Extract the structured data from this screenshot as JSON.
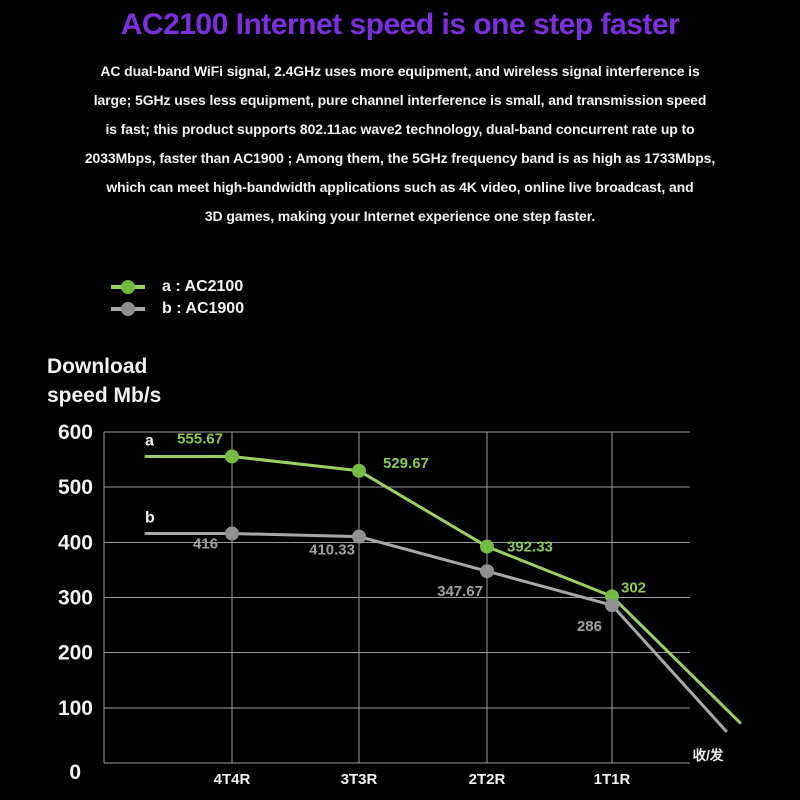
{
  "title": "AC2100 Internet speed is one step faster",
  "colors": {
    "background": "#000000",
    "title": "#7b2fdd",
    "text": "#f2f2f2",
    "grid": "#9a9a9a"
  },
  "description": {
    "lines": [
      "AC dual-band WiFi signal, 2.4GHz uses more equipment, and wireless signal interference is",
      "large; 5GHz uses less equipment, pure channel interference is small, and transmission speed",
      "is fast; this product supports 802.11ac wave2 technology, dual-band concurrent rate up to",
      "2033Mbps, faster than AC1900 ; Among them, the 5GHz frequency band is as high as 1733Mbps,",
      "which can meet high-bandwidth applications such as 4K video, online live broadcast, and",
      "3D games, making your Internet experience one step faster."
    ]
  },
  "y_axis_title_lines": [
    "Download",
    "speed Mb/s"
  ],
  "chart_data": {
    "type": "line",
    "title": "",
    "categories": [
      "4T4R",
      "3T3R",
      "2T2R",
      "1T1R"
    ],
    "xlabel": "收/发",
    "ylabel": "Download speed Mb/s",
    "ylim": [
      0,
      600
    ],
    "yticks": [
      0,
      100,
      200,
      300,
      400,
      500,
      600
    ],
    "grid": true,
    "legend_position": "top-left",
    "series": [
      {
        "name": "a : AC2100",
        "letter": "a",
        "line_color": "#9ccf63",
        "marker_color": "#74bb44",
        "label_color": "#8fc94f",
        "values": [
          555.67,
          529.67,
          392.33,
          302
        ],
        "point_labels": [
          "555.67",
          "529.67",
          "392.33",
          "302"
        ],
        "tail_end_value": 73
      },
      {
        "name": "b : AC1900",
        "letter": "b",
        "line_color": "#a8a8a8",
        "marker_color": "#909090",
        "label_color": "#a0a0a0",
        "values": [
          416,
          410.33,
          347.67,
          286
        ],
        "point_labels": [
          "416",
          "410.33",
          "347.67",
          "286"
        ],
        "tail_end_value": 58
      }
    ]
  }
}
